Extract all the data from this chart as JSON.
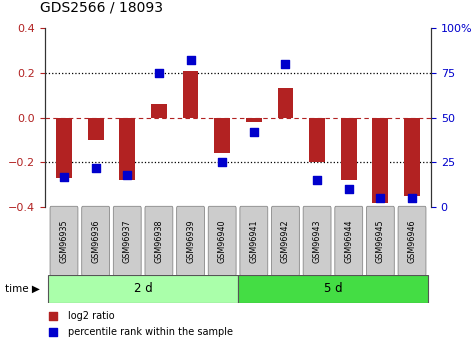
{
  "title": "GDS2566 / 18093",
  "samples": [
    "GSM96935",
    "GSM96936",
    "GSM96937",
    "GSM96938",
    "GSM96939",
    "GSM96940",
    "GSM96941",
    "GSM96942",
    "GSM96943",
    "GSM96944",
    "GSM96945",
    "GSM96946"
  ],
  "log2_ratio": [
    -0.27,
    -0.1,
    -0.28,
    0.06,
    0.21,
    -0.16,
    -0.02,
    0.13,
    -0.2,
    -0.28,
    -0.38,
    -0.35
  ],
  "pct_rank": [
    17,
    22,
    18,
    75,
    82,
    25,
    42,
    80,
    15,
    10,
    5,
    5
  ],
  "group1_label": "2 d",
  "group2_label": "5 d",
  "group1_count": 6,
  "group2_count": 6,
  "bar_color": "#b22222",
  "dot_color": "#0000cc",
  "ylim_left": [
    -0.4,
    0.4
  ],
  "ylim_right": [
    0,
    100
  ],
  "yticks_left": [
    -0.4,
    -0.2,
    0.0,
    0.2,
    0.4
  ],
  "yticks_right": [
    0,
    25,
    50,
    75,
    100
  ],
  "hlines_dotted": [
    -0.2,
    0.2
  ],
  "hline_zero": 0.0,
  "group1_color": "#aaffaa",
  "group2_color": "#44dd44",
  "tick_box_color": "#cccccc",
  "background_color": "#ffffff",
  "bar_width": 0.5,
  "dot_size": 28
}
